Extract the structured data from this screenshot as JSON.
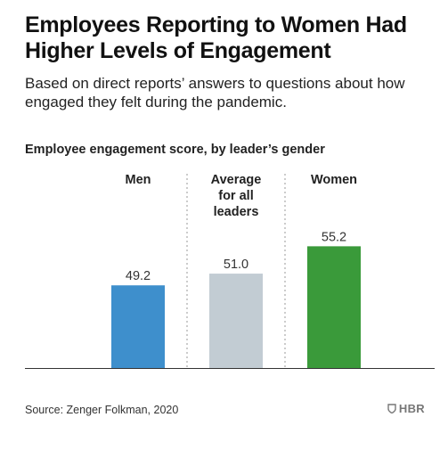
{
  "header": {
    "title": "Employees Reporting to Women Had Higher Levels of Engagement",
    "subtitle": "Based on direct reports’ answers to questions about how engaged they felt during the pandemic."
  },
  "chart_label": "Employee engagement score, by leader’s gender",
  "footer": {
    "source": "Source: Zenger Folkman, 2020",
    "brand": "HBR",
    "brand_icon": "shield-icon"
  },
  "chart_data": {
    "type": "bar",
    "title": "Employees Reporting to Women Had Higher Levels of Engagement",
    "subtitle": "Employee engagement score, by leader’s gender",
    "categories": [
      "Men",
      "Average for all leaders",
      "Women"
    ],
    "category_lines": [
      [
        "Men"
      ],
      [
        "Average",
        "for all",
        "leaders"
      ],
      [
        "Women"
      ]
    ],
    "values": [
      49.2,
      51.0,
      55.2
    ],
    "value_labels": [
      "49.2",
      "51.0",
      "55.2"
    ],
    "colors": [
      "#3e8fcc",
      "#c2ccd3",
      "#3a9a3a"
    ],
    "ylim": [
      36.5,
      55.8
    ],
    "xlabel": "",
    "ylabel": "",
    "grid": false,
    "legend": "none"
  }
}
